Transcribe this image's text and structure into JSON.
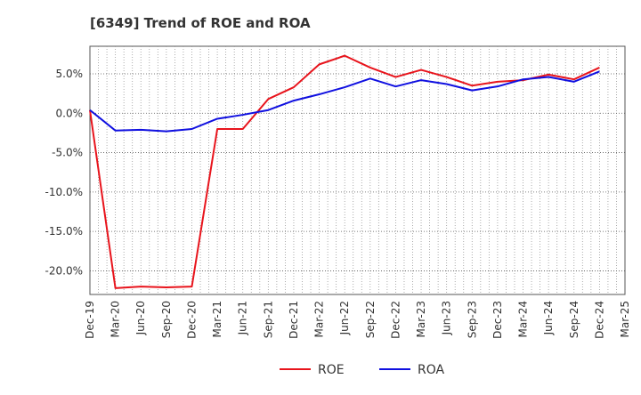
{
  "chart_data": {
    "type": "line",
    "title": "[6349]  Trend of ROE and ROA",
    "xlabel": "",
    "ylabel": "",
    "x": [
      "Dec-19",
      "Mar-20",
      "Jun-20",
      "Sep-20",
      "Dec-20",
      "Mar-21",
      "Jun-21",
      "Sep-21",
      "Dec-21",
      "Mar-22",
      "Jun-22",
      "Sep-22",
      "Dec-22",
      "Mar-23",
      "Jun-23",
      "Sep-23",
      "Dec-23",
      "Mar-24",
      "Jun-24",
      "Sep-24",
      "Dec-24",
      "Mar-25"
    ],
    "ylim": [
      -23,
      8.5
    ],
    "yticks": [
      5.0,
      0.0,
      -5.0,
      -10.0,
      -15.0,
      -20.0
    ],
    "ytick_labels": [
      "5.0%",
      "0.0%",
      "-5.0%",
      "-10.0%",
      "-15.0%",
      "-20.0%"
    ],
    "grid": true,
    "legend_position": "bottom-center",
    "series": [
      {
        "name": "ROE",
        "color": "#e8141c",
        "values": [
          0.4,
          -22.2,
          -22.0,
          -22.1,
          -22.0,
          -2.0,
          -2.0,
          1.8,
          3.3,
          6.2,
          7.3,
          5.8,
          4.6,
          5.5,
          4.6,
          3.5,
          4.0,
          4.2,
          4.9,
          4.3,
          5.8,
          null
        ]
      },
      {
        "name": "ROA",
        "color": "#1010e0",
        "values": [
          0.4,
          -2.2,
          -2.1,
          -2.3,
          -2.0,
          -0.7,
          -0.2,
          0.4,
          1.6,
          2.4,
          3.3,
          4.4,
          3.4,
          4.2,
          3.7,
          2.9,
          3.4,
          4.3,
          4.6,
          4.0,
          5.3,
          null
        ]
      }
    ]
  }
}
